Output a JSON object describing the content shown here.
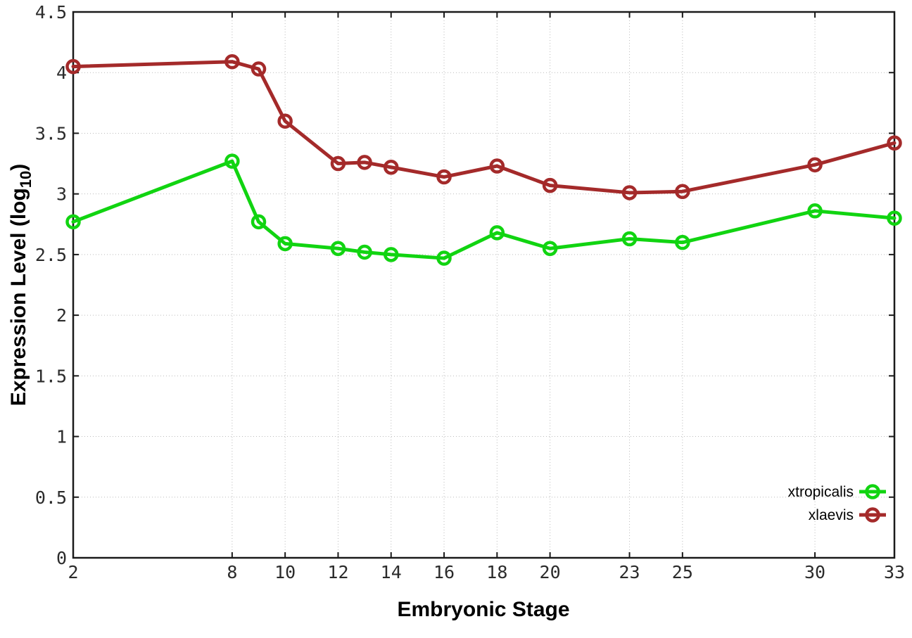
{
  "chart_data": {
    "type": "line",
    "title": "",
    "xlabel": "Embryonic Stage",
    "ylabel": {
      "prefix": "Expression Level (log",
      "subscript": "10",
      "suffix": ")"
    },
    "xlim": [
      2,
      33
    ],
    "ylim": [
      0,
      4.5
    ],
    "x_ticks": [
      2,
      8,
      10,
      12,
      14,
      16,
      18,
      20,
      23,
      25,
      30,
      33
    ],
    "y_ticks": [
      0,
      0.5,
      1,
      1.5,
      2,
      2.5,
      3,
      3.5,
      4,
      4.5
    ],
    "grid": true,
    "legend_position": "inside-bottom-right",
    "x": [
      2,
      8,
      9,
      10,
      12,
      13,
      14,
      16,
      18,
      20,
      23,
      25,
      30,
      33
    ],
    "series": [
      {
        "name": "xtropicalis",
        "color": "#11d411",
        "values": [
          2.77,
          3.27,
          2.77,
          2.59,
          2.55,
          2.52,
          2.5,
          2.47,
          2.68,
          2.55,
          2.63,
          2.6,
          2.86,
          2.8
        ]
      },
      {
        "name": "xlaevis",
        "color": "#a42a2a",
        "values": [
          4.05,
          4.09,
          4.03,
          3.6,
          3.25,
          3.26,
          3.22,
          3.14,
          3.23,
          3.07,
          3.01,
          3.02,
          3.24,
          3.42
        ]
      }
    ],
    "colors": {
      "axis": "#1a1a1a",
      "grid": "#bcbcbc",
      "background": "#ffffff"
    }
  }
}
